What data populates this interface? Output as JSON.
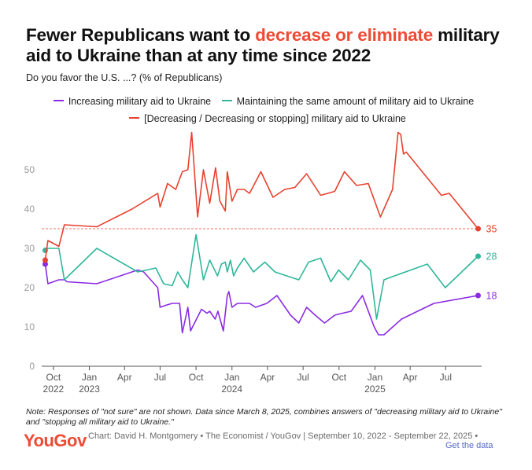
{
  "title": {
    "part1": "Fewer Republicans want to ",
    "highlight": "decrease or eliminate",
    "part2": " military aid to Ukraine than at any time since 2022"
  },
  "subtitle": "Do you favor the U.S. ...? (% of Republicans)",
  "note": "Note: Responses of \"not sure\" are not shown. Data since March 8, 2025, combines answers of \"decreasing military aid to Ukraine\" and \"stopping all military aid to Ukraine.\"",
  "footer": {
    "logo": "YouGov",
    "credit": "Chart: David H. Montgomery • The Economist / YouGov | September 10, 2022 - September 22, 2025 •",
    "get_data": "Get the data"
  },
  "colors": {
    "increase": "#8a2be2",
    "maintain": "#2fb89a",
    "decrease": "#e8412f",
    "axis": "#9a9a9a",
    "grid": "#e6e6e6"
  },
  "chart_data": {
    "type": "line",
    "ylim": [
      0,
      60
    ],
    "yticks": [
      0,
      10,
      20,
      30,
      40,
      50
    ],
    "xlim": [
      "2022-09-01",
      "2025-10-01"
    ],
    "xticks": [
      {
        "date": "2022-10-01",
        "label": "Oct",
        "year": "2022"
      },
      {
        "date": "2023-01-01",
        "label": "Jan",
        "year": "2023"
      },
      {
        "date": "2023-04-01",
        "label": "Apr",
        "year": ""
      },
      {
        "date": "2023-07-01",
        "label": "Jul",
        "year": ""
      },
      {
        "date": "2023-10-01",
        "label": "Oct",
        "year": ""
      },
      {
        "date": "2024-01-01",
        "label": "Jan",
        "year": "2024"
      },
      {
        "date": "2024-04-01",
        "label": "Apr",
        "year": ""
      },
      {
        "date": "2024-07-01",
        "label": "Jul",
        "year": ""
      },
      {
        "date": "2024-10-01",
        "label": "Oct",
        "year": ""
      },
      {
        "date": "2025-01-01",
        "label": "Jan",
        "year": "2025"
      },
      {
        "date": "2025-04-01",
        "label": "Apr",
        "year": ""
      },
      {
        "date": "2025-07-01",
        "label": "Jul",
        "year": ""
      }
    ],
    "reference_line": 35,
    "series": [
      {
        "key": "increase",
        "name": "Increasing military aid to Ukraine",
        "end_label": "18",
        "points": [
          [
            "2022-09-10",
            26
          ],
          [
            "2022-09-17",
            21
          ],
          [
            "2022-10-15",
            22
          ],
          [
            "2022-10-29",
            22
          ],
          [
            "2022-11-05",
            21.5
          ],
          [
            "2023-01-20",
            21
          ],
          [
            "2023-05-05",
            24.5
          ],
          [
            "2023-05-20",
            24
          ],
          [
            "2023-06-25",
            20
          ],
          [
            "2023-07-01",
            15
          ],
          [
            "2023-07-15",
            15.5
          ],
          [
            "2023-08-01",
            16
          ],
          [
            "2023-08-20",
            16
          ],
          [
            "2023-08-27",
            8.5
          ],
          [
            "2023-09-10",
            15
          ],
          [
            "2023-09-17",
            9
          ],
          [
            "2023-10-15",
            14.5
          ],
          [
            "2023-10-29",
            13.5
          ],
          [
            "2023-11-05",
            14
          ],
          [
            "2023-11-19",
            12
          ],
          [
            "2023-11-26",
            14
          ],
          [
            "2023-12-10",
            9
          ],
          [
            "2023-12-20",
            18
          ],
          [
            "2023-12-24",
            19
          ],
          [
            "2024-01-01",
            15
          ],
          [
            "2024-01-15",
            16
          ],
          [
            "2024-02-15",
            16
          ],
          [
            "2024-03-01",
            15
          ],
          [
            "2024-03-30",
            16
          ],
          [
            "2024-04-25",
            18
          ],
          [
            "2024-05-30",
            13
          ],
          [
            "2024-06-20",
            11
          ],
          [
            "2024-07-10",
            15
          ],
          [
            "2024-08-01",
            13
          ],
          [
            "2024-08-25",
            11
          ],
          [
            "2024-09-20",
            13
          ],
          [
            "2024-10-10",
            13.5
          ],
          [
            "2024-11-01",
            14
          ],
          [
            "2024-11-30",
            18
          ],
          [
            "2024-12-30",
            10
          ],
          [
            "2025-01-10",
            8
          ],
          [
            "2025-01-24",
            8
          ],
          [
            "2025-03-10",
            12
          ],
          [
            "2025-04-20",
            14
          ],
          [
            "2025-06-01",
            16
          ],
          [
            "2025-09-22",
            18
          ]
        ]
      },
      {
        "key": "maintain",
        "name": "Maintaining the same amount of military aid to Ukraine",
        "end_label": "28",
        "points": [
          [
            "2022-09-10",
            29.5
          ],
          [
            "2022-09-17",
            30
          ],
          [
            "2022-10-15",
            30
          ],
          [
            "2022-10-29",
            22
          ],
          [
            "2023-01-20",
            30
          ],
          [
            "2023-05-05",
            24
          ],
          [
            "2023-06-20",
            25
          ],
          [
            "2023-07-10",
            21
          ],
          [
            "2023-08-01",
            20.5
          ],
          [
            "2023-08-15",
            24
          ],
          [
            "2023-08-27",
            22
          ],
          [
            "2023-09-10",
            20
          ],
          [
            "2023-10-01",
            33.5
          ],
          [
            "2023-10-20",
            22
          ],
          [
            "2023-11-05",
            27
          ],
          [
            "2023-11-25",
            23
          ],
          [
            "2023-12-05",
            26
          ],
          [
            "2023-12-15",
            26.5
          ],
          [
            "2023-12-20",
            24
          ],
          [
            "2023-12-28",
            27
          ],
          [
            "2024-01-05",
            23
          ],
          [
            "2024-01-15",
            25
          ],
          [
            "2024-02-01",
            27.5
          ],
          [
            "2024-02-25",
            24
          ],
          [
            "2024-03-25",
            26.5
          ],
          [
            "2024-04-20",
            24
          ],
          [
            "2024-05-20",
            23
          ],
          [
            "2024-06-20",
            22
          ],
          [
            "2024-07-15",
            26.5
          ],
          [
            "2024-08-15",
            27.5
          ],
          [
            "2024-09-10",
            21.5
          ],
          [
            "2024-09-30",
            24.5
          ],
          [
            "2024-10-25",
            22
          ],
          [
            "2024-11-25",
            27
          ],
          [
            "2024-12-20",
            24.5
          ],
          [
            "2025-01-05",
            12
          ],
          [
            "2025-01-24",
            22
          ],
          [
            "2025-02-20",
            23
          ],
          [
            "2025-05-15",
            26
          ],
          [
            "2025-06-30",
            20
          ],
          [
            "2025-09-22",
            28
          ]
        ]
      },
      {
        "key": "decrease",
        "name": "[Decreasing / Decreasing or stopping] military aid to Ukraine",
        "end_label": "35",
        "points": [
          [
            "2022-09-10",
            27
          ],
          [
            "2022-09-17",
            32
          ],
          [
            "2022-10-15",
            30.5
          ],
          [
            "2022-10-29",
            36
          ],
          [
            "2023-01-20",
            35.5
          ],
          [
            "2023-04-20",
            40
          ],
          [
            "2023-06-25",
            44
          ],
          [
            "2023-07-01",
            40.5
          ],
          [
            "2023-07-20",
            46.5
          ],
          [
            "2023-08-10",
            45
          ],
          [
            "2023-08-27",
            49.5
          ],
          [
            "2023-09-10",
            50
          ],
          [
            "2023-09-20",
            59.5
          ],
          [
            "2023-10-05",
            38
          ],
          [
            "2023-10-20",
            50
          ],
          [
            "2023-11-05",
            41.5
          ],
          [
            "2023-11-20",
            50.5
          ],
          [
            "2023-12-01",
            42
          ],
          [
            "2023-12-15",
            39.5
          ],
          [
            "2023-12-20",
            49.5
          ],
          [
            "2024-01-01",
            42
          ],
          [
            "2024-01-15",
            45
          ],
          [
            "2024-02-01",
            45
          ],
          [
            "2024-02-15",
            44
          ],
          [
            "2024-03-15",
            49.5
          ],
          [
            "2024-04-15",
            43
          ],
          [
            "2024-05-15",
            45
          ],
          [
            "2024-06-10",
            45.5
          ],
          [
            "2024-07-10",
            49
          ],
          [
            "2024-08-15",
            43.5
          ],
          [
            "2024-09-20",
            44.5
          ],
          [
            "2024-10-15",
            49.5
          ],
          [
            "2024-11-15",
            46
          ],
          [
            "2024-12-15",
            46.5
          ],
          [
            "2025-01-15",
            38
          ],
          [
            "2025-02-15",
            45
          ],
          [
            "2025-03-01",
            59.5
          ],
          [
            "2025-03-08",
            59
          ],
          [
            "2025-03-15",
            54
          ],
          [
            "2025-03-22",
            54.5
          ],
          [
            "2025-06-20",
            43.5
          ],
          [
            "2025-07-10",
            44
          ],
          [
            "2025-09-22",
            35
          ]
        ]
      }
    ]
  }
}
